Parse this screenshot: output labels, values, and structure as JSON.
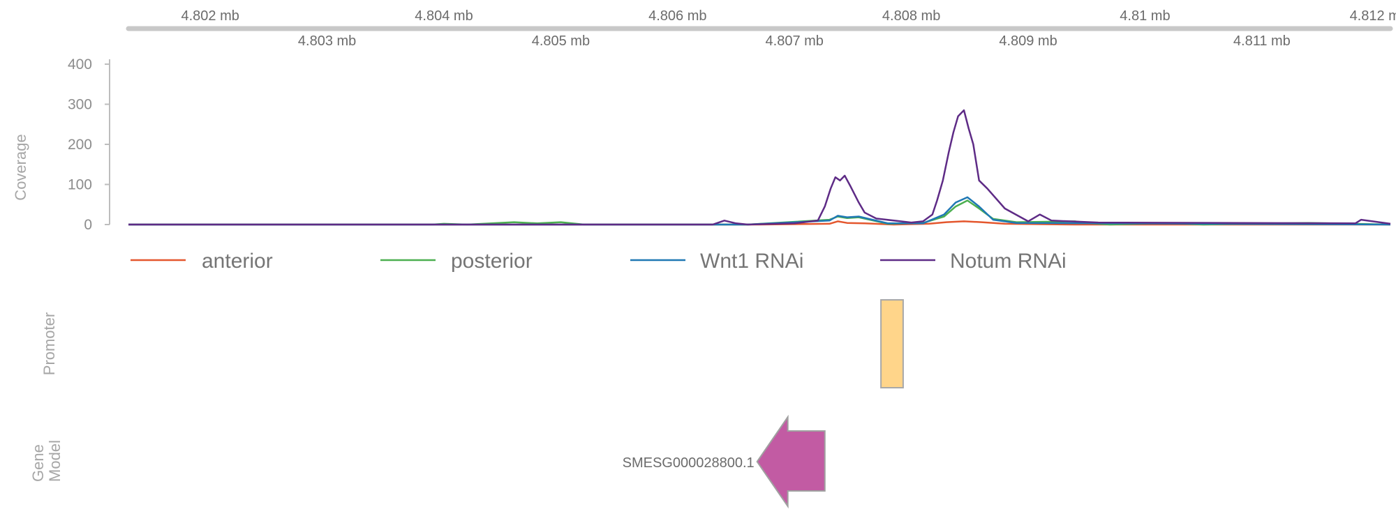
{
  "chart_data": {
    "type": "line",
    "genome_axis": {
      "unit": "mb",
      "range": [
        4.8013,
        4.8121
      ],
      "ticks_upper": [
        {
          "value": 4.802,
          "label": "4.802 mb"
        },
        {
          "value": 4.804,
          "label": "4.804 mb"
        },
        {
          "value": 4.806,
          "label": "4.806 mb"
        },
        {
          "value": 4.808,
          "label": "4.808 mb"
        },
        {
          "value": 4.81,
          "label": "4.81 mb"
        },
        {
          "value": 4.812,
          "label": "4.812 mb"
        }
      ],
      "ticks_lower": [
        {
          "value": 4.803,
          "label": "4.803 mb"
        },
        {
          "value": 4.805,
          "label": "4.805 mb"
        },
        {
          "value": 4.807,
          "label": "4.807 mb"
        },
        {
          "value": 4.809,
          "label": "4.809 mb"
        },
        {
          "value": 4.811,
          "label": "4.811 mb"
        }
      ]
    },
    "coverage": {
      "ylabel": "Coverage",
      "ylim": [
        0,
        400
      ],
      "yticks": [
        {
          "value": 0,
          "label": "0"
        },
        {
          "value": 100,
          "label": "100"
        },
        {
          "value": 200,
          "label": "200"
        },
        {
          "value": 300,
          "label": "300"
        },
        {
          "value": 400,
          "label": "400"
        }
      ],
      "series": [
        {
          "name": "anterior",
          "color": "#e4572e",
          "x": [
            4.8013,
            4.8067,
            4.8073,
            4.80737,
            4.80745,
            4.8076,
            4.80785,
            4.80815,
            4.8083,
            4.80845,
            4.8086,
            4.8088,
            4.8094,
            4.8121
          ],
          "y": [
            0,
            0,
            2,
            8,
            4,
            3,
            0,
            2,
            6,
            8,
            6,
            2,
            0,
            0
          ]
        },
        {
          "name": "posterior",
          "color": "#4caf50",
          "x": [
            4.8013,
            4.8039,
            4.804,
            4.8042,
            4.8046,
            4.8048,
            4.805,
            4.8052,
            4.8066,
            4.8073,
            4.80737,
            4.80745,
            4.80755,
            4.8078,
            4.8081,
            4.80828,
            4.80838,
            4.80848,
            4.80858,
            4.8087,
            4.8089,
            4.8094,
            4.8095,
            4.8097,
            4.8102,
            4.8105,
            4.8108,
            4.8114,
            4.8121
          ],
          "y": [
            0,
            0,
            2,
            0,
            6,
            3,
            6,
            0,
            0,
            12,
            20,
            16,
            18,
            2,
            4,
            20,
            45,
            60,
            40,
            14,
            6,
            8,
            4,
            0,
            4,
            0,
            2,
            4,
            0
          ]
        },
        {
          "name": "Wnt1 RNAi",
          "color": "#1f78b4",
          "x": [
            4.8013,
            4.8066,
            4.8073,
            4.80737,
            4.80745,
            4.80755,
            4.8078,
            4.8081,
            4.80828,
            4.80838,
            4.80848,
            4.80858,
            4.8087,
            4.8089,
            4.8121
          ],
          "y": [
            0,
            0,
            10,
            22,
            18,
            20,
            3,
            3,
            25,
            55,
            68,
            45,
            12,
            4,
            0
          ]
        },
        {
          "name": "Notum RNAi",
          "color": "#5e2b86",
          "x": [
            4.8013,
            4.8063,
            4.8064,
            4.8065,
            4.8066,
            4.807,
            4.8072,
            4.80726,
            4.80731,
            4.80735,
            4.80739,
            4.80743,
            4.80748,
            4.80755,
            4.8076,
            4.8077,
            4.808,
            4.8081,
            4.80818,
            4.80822,
            4.80827,
            4.80832,
            4.80836,
            4.8084,
            4.80845,
            4.80849,
            4.80853,
            4.80858,
            4.80865,
            4.8088,
            4.809,
            4.8091,
            4.8092,
            4.8096,
            4.8118,
            4.81185,
            4.8121
          ],
          "y": [
            0,
            0,
            10,
            3,
            0,
            3,
            10,
            45,
            90,
            118,
            110,
            122,
            95,
            55,
            30,
            15,
            5,
            8,
            25,
            60,
            110,
            180,
            230,
            270,
            285,
            240,
            200,
            110,
            90,
            40,
            8,
            25,
            10,
            5,
            3,
            12,
            2
          ]
        }
      ]
    },
    "legend": [
      "anterior",
      "posterior",
      "Wnt1 RNAi",
      "Notum RNAi"
    ],
    "promoter": {
      "label": "Promoter",
      "start": 4.80774,
      "end": 4.80793,
      "color": "#ffd58a"
    },
    "gene_model": {
      "label": "Gene\nModel",
      "gene": "SMESG000028800.1",
      "start": 4.80668,
      "end": 4.80726,
      "strand": "-",
      "color": "#c25ba3"
    }
  }
}
